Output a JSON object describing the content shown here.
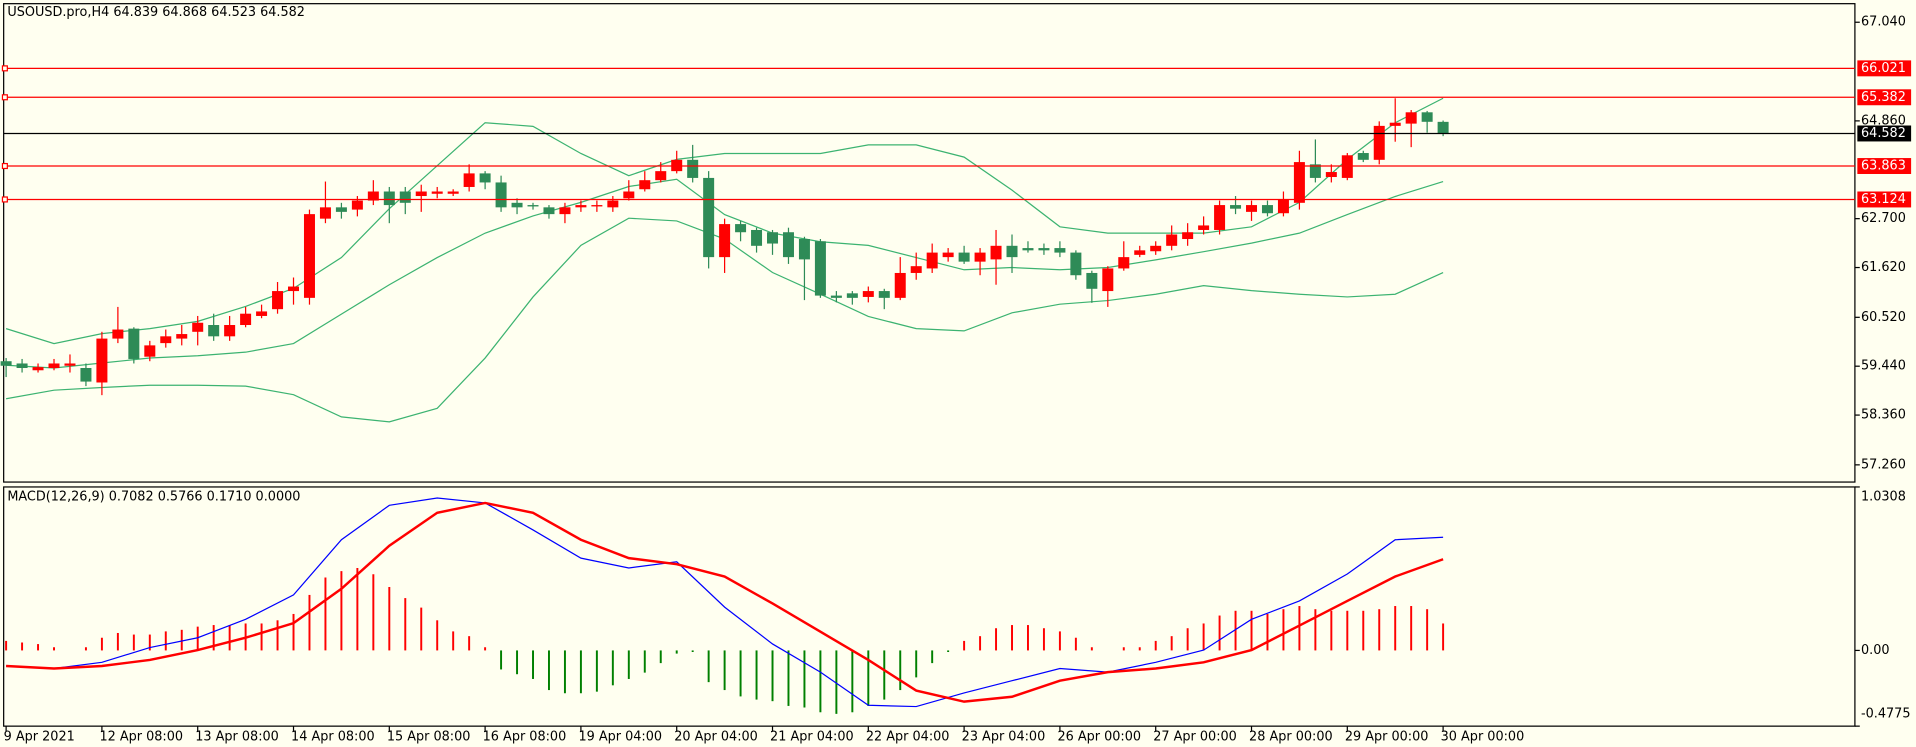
{
  "chart_data": [
    {
      "type": "candlestick",
      "title": "USOUSD.pro,H4  64.839 64.868 64.523 64.582",
      "categories": [
        "9 Apr 2021",
        null,
        null,
        null,
        null,
        null,
        "12 Apr 08:00",
        null,
        null,
        null,
        null,
        null,
        "13 Apr 08:00",
        null,
        null,
        null,
        null,
        null,
        "14 Apr 08:00",
        null,
        null,
        null,
        null,
        null,
        "15 Apr 08:00",
        null,
        null,
        null,
        null,
        null,
        "16 Apr 08:00",
        null,
        null,
        null,
        null,
        null,
        "19 Apr 04:00",
        null,
        null,
        null,
        null,
        null,
        "20 Apr 04:00",
        null,
        null,
        null,
        null,
        null,
        "21 Apr 04:00",
        null,
        null,
        null,
        null,
        null,
        "22 Apr 04:00",
        null,
        null,
        null,
        null,
        null,
        "23 Apr 04:00",
        null,
        null,
        null,
        null,
        null,
        "26 Apr 00:00",
        null,
        null,
        null,
        null,
        null,
        "27 Apr 00:00",
        null,
        null,
        null,
        null,
        null,
        "28 Apr 00:00",
        null,
        null,
        null,
        null,
        null,
        "29 Apr 00:00",
        null,
        null,
        null,
        null,
        null,
        "30 Apr 00:00"
      ],
      "open": [
        59.55,
        59.5,
        59.35,
        59.4,
        59.45,
        59.4,
        59.08,
        60.05,
        60.27,
        59.65,
        59.95,
        60.05,
        60.2,
        60.35,
        60.1,
        60.35,
        60.55,
        60.7,
        61.1,
        60.95,
        62.7,
        62.95,
        62.9,
        63.1,
        63.3,
        63.3,
        63.2,
        63.25,
        63.25,
        63.4,
        63.7,
        63.5,
        63.05,
        63.0,
        62.95,
        62.8,
        62.95,
        62.97,
        62.95,
        63.15,
        63.35,
        63.55,
        63.75,
        64.0,
        63.6,
        61.85,
        62.58,
        62.45,
        62.4,
        62.4,
        62.25,
        62.2,
        61.0,
        61.05,
        60.97,
        61.1,
        60.95,
        61.5,
        61.6,
        61.85,
        61.95,
        61.75,
        61.8,
        62.1,
        62.05,
        62.05,
        62.05,
        61.95,
        61.5,
        61.1,
        61.6,
        61.9,
        61.98,
        62.1,
        62.25,
        62.45,
        62.45,
        63.0,
        62.85,
        63.0,
        62.82,
        63.05,
        63.9,
        63.62,
        63.6,
        64.15,
        64.0,
        64.75,
        64.8,
        65.05,
        64.839
      ],
      "high": [
        59.62,
        59.6,
        59.5,
        59.6,
        59.7,
        59.5,
        60.2,
        60.75,
        60.3,
        60.0,
        60.25,
        60.35,
        60.55,
        60.6,
        60.55,
        60.75,
        60.8,
        61.3,
        61.4,
        62.9,
        63.52,
        63.05,
        63.2,
        63.55,
        63.4,
        63.4,
        63.45,
        63.4,
        63.35,
        63.9,
        63.75,
        63.65,
        63.15,
        63.05,
        63.0,
        63.05,
        63.1,
        63.1,
        63.2,
        63.55,
        63.75,
        63.95,
        64.2,
        64.33,
        63.75,
        62.7,
        62.65,
        62.5,
        62.45,
        62.5,
        62.3,
        62.25,
        61.1,
        61.1,
        61.2,
        61.15,
        61.85,
        61.95,
        62.15,
        62.05,
        62.1,
        62.05,
        62.45,
        62.35,
        62.2,
        62.15,
        62.2,
        62.0,
        61.55,
        61.65,
        62.2,
        62.1,
        62.2,
        62.55,
        62.6,
        62.75,
        63.1,
        63.2,
        63.1,
        63.1,
        63.3,
        64.2,
        64.45,
        63.9,
        64.15,
        64.2,
        64.85,
        65.36,
        65.1,
        65.08,
        64.868
      ],
      "low": [
        59.2,
        59.3,
        59.3,
        59.35,
        59.3,
        59.0,
        58.8,
        59.95,
        59.5,
        59.55,
        59.85,
        59.9,
        59.9,
        60.0,
        60.0,
        60.3,
        60.5,
        60.6,
        60.8,
        60.8,
        62.6,
        62.7,
        62.75,
        63.0,
        62.6,
        62.8,
        62.85,
        63.15,
        63.2,
        63.3,
        63.35,
        62.85,
        62.8,
        62.9,
        62.7,
        62.6,
        62.85,
        62.85,
        62.85,
        63.1,
        63.3,
        63.5,
        63.7,
        63.5,
        61.6,
        61.5,
        62.2,
        61.95,
        61.9,
        61.7,
        60.9,
        60.95,
        60.85,
        60.8,
        60.85,
        60.7,
        60.9,
        61.35,
        61.5,
        61.75,
        61.7,
        61.45,
        61.24,
        61.5,
        61.95,
        61.9,
        61.85,
        61.35,
        60.84,
        60.75,
        61.55,
        61.85,
        61.9,
        62.0,
        62.1,
        62.35,
        62.35,
        62.8,
        62.65,
        62.75,
        62.75,
        62.9,
        63.5,
        63.5,
        63.55,
        63.95,
        63.9,
        64.4,
        64.28,
        64.6,
        64.523
      ],
      "close": [
        59.45,
        59.4,
        59.42,
        59.5,
        59.5,
        59.1,
        60.05,
        60.25,
        59.6,
        59.9,
        60.1,
        60.15,
        60.4,
        60.1,
        60.35,
        60.6,
        60.65,
        61.1,
        61.2,
        62.8,
        62.95,
        62.85,
        63.1,
        63.3,
        63.0,
        63.05,
        63.3,
        63.3,
        63.3,
        63.7,
        63.5,
        62.95,
        62.95,
        62.97,
        62.8,
        62.95,
        63.0,
        63.0,
        63.1,
        63.3,
        63.55,
        63.75,
        64.0,
        63.6,
        61.85,
        62.58,
        62.4,
        62.1,
        62.15,
        61.85,
        61.8,
        61.0,
        60.95,
        60.95,
        61.1,
        60.95,
        61.5,
        61.65,
        61.95,
        61.95,
        61.75,
        61.95,
        62.1,
        61.85,
        62.0,
        62.0,
        61.95,
        61.45,
        61.15,
        61.6,
        61.85,
        62.0,
        62.1,
        62.35,
        62.4,
        62.55,
        63.0,
        62.92,
        63.0,
        62.82,
        63.12,
        63.95,
        63.6,
        63.73,
        64.1,
        64.0,
        64.75,
        64.82,
        65.05,
        64.84,
        64.582
      ],
      "up_color": "#ff0000",
      "down_color": "#2e8b57",
      "bands": [
        {
          "color": "#3cb371",
          "values": [
            60.27,
            59.94,
            60.16,
            60.27,
            60.43,
            60.76,
            61.16,
            61.84,
            62.92,
            63.87,
            64.82,
            64.74,
            64.14,
            63.65,
            64.01,
            64.14,
            64.14,
            64.14,
            64.33,
            64.33,
            64.06,
            63.33,
            62.52,
            62.38,
            62.38,
            62.38,
            62.52,
            63.06,
            64.01,
            64.82,
            65.36
          ]
        },
        {
          "color": "#3cb371",
          "values": [
            59.46,
            59.4,
            59.51,
            59.62,
            59.67,
            59.75,
            59.94,
            60.59,
            61.24,
            61.84,
            62.38,
            62.76,
            63.06,
            63.41,
            63.57,
            62.79,
            62.38,
            62.19,
            62.11,
            61.84,
            61.57,
            61.62,
            61.57,
            61.62,
            61.79,
            61.97,
            62.16,
            62.38,
            62.79,
            63.19,
            63.52
          ]
        },
        {
          "color": "#3cb371",
          "values": [
            58.72,
            58.91,
            58.97,
            59.02,
            59.02,
            59.0,
            58.81,
            58.32,
            58.21,
            58.51,
            59.62,
            60.97,
            62.11,
            62.71,
            62.65,
            62.25,
            61.51,
            61.03,
            60.54,
            60.27,
            60.22,
            60.62,
            60.81,
            60.89,
            61.03,
            61.22,
            61.11,
            61.03,
            60.97,
            61.03,
            61.51
          ]
        }
      ],
      "levels": [
        66.021,
        65.382,
        63.863,
        63.124
      ],
      "level_color": "#ff0000",
      "last_price": 64.582,
      "last_price_color": "#000000",
      "ylim": [
        56.88,
        67.45
      ],
      "yticks": [
        {
          "value": 67.04,
          "label": "67.040"
        },
        {
          "value": 64.86,
          "label": "64.860"
        },
        {
          "value": 62.7,
          "label": "62.700"
        },
        {
          "value": 61.62,
          "label": "61.620"
        },
        {
          "value": 60.52,
          "label": "60.520"
        },
        {
          "value": 59.44,
          "label": "59.440"
        },
        {
          "value": 58.36,
          "label": "58.360"
        },
        {
          "value": 57.26,
          "label": "57.260"
        }
      ]
    },
    {
      "type": "macd",
      "title": "MACD(12,26,9) 0.7082 0.5766 0.1710 0.0000",
      "histogram": {
        "up_color": "#ff0000",
        "down_color": "#008000",
        "values": [
          0.06,
          0.05,
          0.04,
          0.02,
          0.0,
          0.02,
          0.08,
          0.11,
          0.1,
          0.1,
          0.12,
          0.13,
          0.15,
          0.16,
          0.16,
          0.17,
          0.17,
          0.19,
          0.23,
          0.35,
          0.46,
          0.5,
          0.52,
          0.48,
          0.4,
          0.33,
          0.27,
          0.19,
          0.12,
          0.09,
          0.02,
          -0.12,
          -0.15,
          -0.18,
          -0.25,
          -0.27,
          -0.27,
          -0.26,
          -0.22,
          -0.18,
          -0.14,
          -0.08,
          -0.02,
          -0.01,
          -0.2,
          -0.25,
          -0.29,
          -0.31,
          -0.32,
          -0.35,
          -0.36,
          -0.39,
          -0.4,
          -0.39,
          -0.35,
          -0.31,
          -0.25,
          -0.17,
          -0.08,
          -0.01,
          0.06,
          0.09,
          0.14,
          0.16,
          0.16,
          0.14,
          0.12,
          0.08,
          0.02,
          0.0,
          0.02,
          0.02,
          0.06,
          0.09,
          0.14,
          0.17,
          0.22,
          0.25,
          0.25,
          0.23,
          0.26,
          0.28,
          0.26,
          0.25,
          0.25,
          0.25,
          0.26,
          0.28,
          0.28,
          0.26,
          0.17
        ]
      },
      "series": [
        {
          "color": "#0000ff",
          "values": [
            -0.098,
            -0.114,
            -0.075,
            0.018,
            0.08,
            0.196,
            0.35,
            0.698,
            0.915,
            0.961,
            0.93,
            0.76,
            0.582,
            0.52,
            0.559,
            0.273,
            0.041,
            -0.137,
            -0.346,
            -0.354,
            -0.268,
            -0.191,
            -0.114,
            -0.137,
            -0.075,
            0.002,
            0.196,
            0.312,
            0.482,
            0.698,
            0.714
          ]
        },
        {
          "color": "#ff0000",
          "values": [
            -0.098,
            -0.114,
            -0.098,
            -0.06,
            0.002,
            0.08,
            0.172,
            0.389,
            0.66,
            0.868,
            0.93,
            0.868,
            0.698,
            0.582,
            0.544,
            0.466,
            0.296,
            0.118,
            -0.06,
            -0.253,
            -0.323,
            -0.292,
            -0.191,
            -0.137,
            -0.114,
            -0.075,
            0.002,
            0.157,
            0.312,
            0.466,
            0.575
          ]
        }
      ],
      "ylim": [
        -0.4775,
        1.0308
      ],
      "yticks": [
        1.0308,
        {
          "value": 0,
          "label": "0.00"
        },
        -0.4775
      ]
    }
  ]
}
